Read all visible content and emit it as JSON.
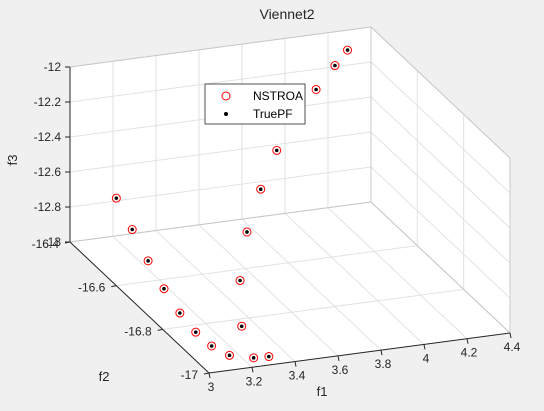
{
  "chart_data": {
    "type": "scatter",
    "title": "Viennet2",
    "xlabel": "f1",
    "ylabel": "f2",
    "zlabel": "f3",
    "xlim": [
      3,
      4.4
    ],
    "ylim": [
      -17,
      -16.4
    ],
    "zlim": [
      -13,
      -12
    ],
    "xticks": [
      "3",
      "3.2",
      "3.4",
      "3.6",
      "3.8",
      "4",
      "4.2",
      "4.4"
    ],
    "yticks": [
      "-17",
      "-16.8",
      "-16.6",
      "-16.4"
    ],
    "zticks": [
      "-13",
      "-12.8",
      "-12.6",
      "-12.4",
      "-12.2",
      "-12"
    ],
    "grid": true,
    "legend_position": "top-center",
    "series": [
      {
        "name": "NSTROA",
        "marker": "circle-open",
        "color": "#ff0000",
        "points": [
          [
            3.0,
            -16.6,
            -12.5
          ],
          [
            3.02,
            -16.65,
            -12.62
          ],
          [
            3.04,
            -16.7,
            -12.74
          ],
          [
            3.06,
            -16.75,
            -12.84
          ],
          [
            3.08,
            -16.8,
            -12.92
          ],
          [
            3.1,
            -16.85,
            -12.97
          ],
          [
            3.12,
            -16.9,
            -12.99
          ],
          [
            3.16,
            -16.94,
            -13.0
          ],
          [
            3.24,
            -16.97,
            -12.99
          ],
          [
            3.3,
            -16.98,
            -12.98
          ],
          [
            3.26,
            -16.9,
            -12.9
          ],
          [
            3.36,
            -16.8,
            -12.78
          ],
          [
            3.5,
            -16.7,
            -12.65
          ],
          [
            3.65,
            -16.62,
            -12.53
          ],
          [
            3.8,
            -16.55,
            -12.42
          ],
          [
            3.95,
            -16.5,
            -12.32
          ],
          [
            4.08,
            -16.46,
            -12.23
          ],
          [
            4.2,
            -16.43,
            -12.15
          ],
          [
            4.28,
            -16.41,
            -12.1
          ]
        ]
      },
      {
        "name": "TruePF",
        "marker": "dot",
        "color": "#000000",
        "points": [
          [
            3.0,
            -16.6,
            -12.5
          ],
          [
            3.02,
            -16.65,
            -12.62
          ],
          [
            3.04,
            -16.7,
            -12.74
          ],
          [
            3.06,
            -16.75,
            -12.84
          ],
          [
            3.08,
            -16.8,
            -12.92
          ],
          [
            3.1,
            -16.85,
            -12.97
          ],
          [
            3.12,
            -16.9,
            -12.99
          ],
          [
            3.16,
            -16.94,
            -13.0
          ],
          [
            3.24,
            -16.97,
            -12.99
          ],
          [
            3.3,
            -16.98,
            -12.98
          ],
          [
            3.26,
            -16.9,
            -12.9
          ],
          [
            3.36,
            -16.8,
            -12.78
          ],
          [
            3.5,
            -16.7,
            -12.65
          ],
          [
            3.65,
            -16.62,
            -12.53
          ],
          [
            3.8,
            -16.55,
            -12.42
          ],
          [
            3.95,
            -16.5,
            -12.32
          ],
          [
            4.08,
            -16.46,
            -12.23
          ],
          [
            4.2,
            -16.43,
            -12.15
          ],
          [
            4.28,
            -16.41,
            -12.1
          ]
        ]
      }
    ]
  }
}
